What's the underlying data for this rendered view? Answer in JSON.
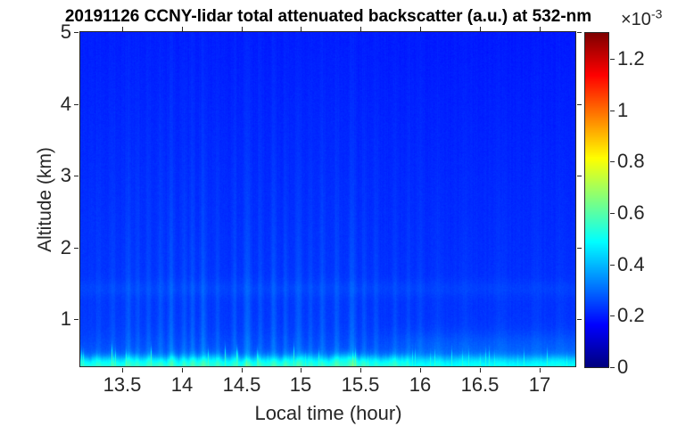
{
  "chart_data": {
    "type": "heatmap",
    "title": "20191126 CCNY-lidar total attenuated backscatter (a.u.) at 532-nm",
    "xlabel": "Local time (hour)",
    "ylabel": "Altitude (km)",
    "x_range": [
      13.15,
      17.3
    ],
    "y_range": [
      0.33,
      5.0
    ],
    "x_ticks": [
      {
        "value": 13.5,
        "label": "13.5"
      },
      {
        "value": 14,
        "label": "14"
      },
      {
        "value": 14.5,
        "label": "14.5"
      },
      {
        "value": 15,
        "label": "15"
      },
      {
        "value": 15.5,
        "label": "15.5"
      },
      {
        "value": 16,
        "label": "16"
      },
      {
        "value": 16.5,
        "label": "16.5"
      },
      {
        "value": 17,
        "label": "17"
      }
    ],
    "y_ticks": [
      {
        "value": 1,
        "label": "1"
      },
      {
        "value": 2,
        "label": "2"
      },
      {
        "value": 3,
        "label": "3"
      },
      {
        "value": 4,
        "label": "4"
      },
      {
        "value": 5,
        "label": "5"
      }
    ],
    "colorbar": {
      "colormap": "jet",
      "range": [
        0,
        1.3
      ],
      "unit_scale": "1e-3",
      "exponent_label": {
        "base": "×10",
        "power": "-3"
      },
      "ticks": [
        {
          "value": 0,
          "label": "0"
        },
        {
          "value": 0.2,
          "label": "0.2"
        },
        {
          "value": 0.4,
          "label": "0.4"
        },
        {
          "value": 0.6,
          "label": "0.6"
        },
        {
          "value": 0.8,
          "label": "0.8"
        },
        {
          "value": 1,
          "label": "1"
        },
        {
          "value": 1.2,
          "label": "1.2"
        }
      ]
    },
    "colors": {
      "background_field": "#0a3cff",
      "boundary_layer_cyan": "#1affe6",
      "colorbar_max": "#800000",
      "colorbar_min": "#000080",
      "axis": "#262626",
      "title": "#000000"
    },
    "field_model": {
      "units": "1e-3 a.u.",
      "base_at_surface": 0.243,
      "base_lapse_per_km": 0.0085,
      "time_drift": -0.008,
      "elevated_band": {
        "altitude_km": 1.42,
        "sigma_km": 0.12,
        "amplitude": 0.018
      },
      "residual_layer": {
        "altitude_km": 0.62,
        "sigma_km": 0.2,
        "amplitude": 0.04
      },
      "boundary_layer": {
        "mean_top_km": 0.46,
        "top_jitter_km": 0.07,
        "amplitude": 0.235,
        "edge_sharpness_km": 0.035,
        "surface_glow_amplitude": 0.07,
        "surface_glow_scale_km": 0.13
      },
      "streak_altitude_scale_km": 2.4,
      "noise_amplitude": 0.012,
      "streaks": [
        {
          "t": 13.3,
          "w": 0.02,
          "a": 0.03
        },
        {
          "t": 13.42,
          "w": 0.02,
          "a": 0.04
        },
        {
          "t": 13.55,
          "w": 0.025,
          "a": 0.06
        },
        {
          "t": 13.63,
          "w": 0.02,
          "a": 0.045
        },
        {
          "t": 13.72,
          "w": 0.02,
          "a": 0.05
        },
        {
          "t": 13.82,
          "w": 0.025,
          "a": 0.055
        },
        {
          "t": 13.91,
          "w": 0.025,
          "a": 0.07
        },
        {
          "t": 14.02,
          "w": 0.02,
          "a": 0.055
        },
        {
          "t": 14.09,
          "w": 0.02,
          "a": 0.06
        },
        {
          "t": 14.18,
          "w": 0.025,
          "a": 0.075
        },
        {
          "t": 14.3,
          "w": 0.02,
          "a": 0.05
        },
        {
          "t": 14.44,
          "w": 0.02,
          "a": 0.055
        },
        {
          "t": 14.55,
          "w": 0.03,
          "a": 0.08
        },
        {
          "t": 14.66,
          "w": 0.02,
          "a": 0.05
        },
        {
          "t": 14.77,
          "w": 0.025,
          "a": 0.065
        },
        {
          "t": 14.87,
          "w": 0.02,
          "a": 0.055
        },
        {
          "t": 14.98,
          "w": 0.03,
          "a": 0.07
        },
        {
          "t": 15.08,
          "w": 0.02,
          "a": 0.05
        },
        {
          "t": 15.18,
          "w": 0.025,
          "a": 0.06
        },
        {
          "t": 15.3,
          "w": 0.025,
          "a": 0.065
        },
        {
          "t": 15.43,
          "w": 0.03,
          "a": 0.075
        },
        {
          "t": 15.53,
          "w": 0.02,
          "a": 0.05
        },
        {
          "t": 15.63,
          "w": 0.02,
          "a": 0.045
        },
        {
          "t": 15.79,
          "w": 0.02,
          "a": 0.04
        },
        {
          "t": 15.9,
          "w": 0.02,
          "a": 0.035
        },
        {
          "t": 16.0,
          "w": 0.025,
          "a": 0.03
        },
        {
          "t": 16.15,
          "w": 0.04,
          "a": 0.025
        },
        {
          "t": 16.38,
          "w": 0.04,
          "a": 0.02
        },
        {
          "t": 16.68,
          "w": 0.05,
          "a": 0.02
        },
        {
          "t": 16.98,
          "w": 0.05,
          "a": 0.018
        },
        {
          "t": 17.18,
          "w": 0.04,
          "a": 0.018
        }
      ]
    }
  }
}
